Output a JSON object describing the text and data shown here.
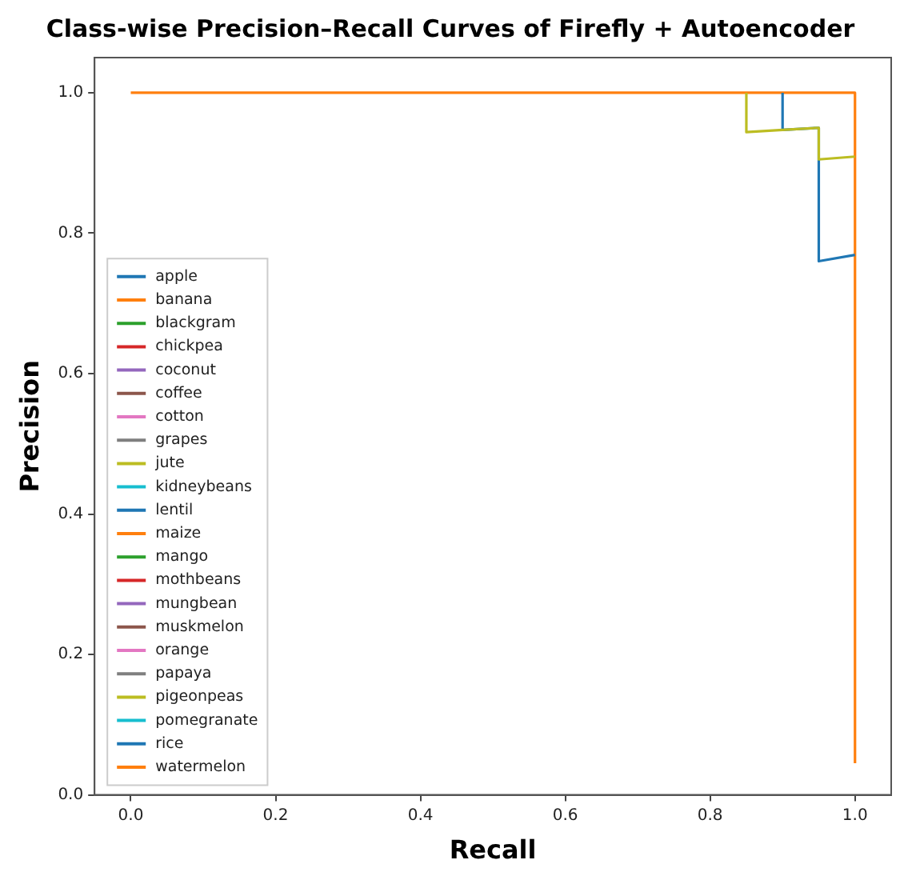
{
  "chart_data": {
    "type": "line",
    "title": "Class-wise Precision–Recall Curves of Firefly + Autoencoder",
    "xlabel": "Recall",
    "ylabel": "Precision",
    "xlim": [
      -0.05,
      1.05
    ],
    "ylim": [
      0,
      1.05
    ],
    "xticks": [
      {
        "value": 0,
        "label": "0.0"
      },
      0.2,
      0.4,
      0.6,
      0.8,
      {
        "value": 1,
        "label": "1.0"
      }
    ],
    "yticks": [
      {
        "value": 0,
        "label": "0.0"
      },
      0.2,
      0.4,
      0.6,
      0.8,
      {
        "value": 1,
        "label": "1.0"
      }
    ],
    "grid": false,
    "legend": "bottom left",
    "marker": "none",
    "line_style": "solid",
    "series": [
      {
        "name": "apple",
        "color": "#1f77b4"
      },
      {
        "name": "banana",
        "color": "#ff7f0e"
      },
      {
        "name": "blackgram",
        "color": "#2ca02c"
      },
      {
        "name": "chickpea",
        "color": "#d62728"
      },
      {
        "name": "coconut",
        "color": "#9467bd"
      },
      {
        "name": "coffee",
        "color": "#8c564b"
      },
      {
        "name": "cotton",
        "color": "#e377c2"
      },
      {
        "name": "grapes",
        "color": "#7f7f7f"
      },
      {
        "name": "jute",
        "color": "#bcbd22",
        "x": [
          1,
          0.95,
          0.95,
          0.9,
          0.85,
          0.85
        ],
        "values": [
          0.909,
          0.905,
          0.95,
          0.947,
          0.944,
          1
        ]
      },
      {
        "name": "kidneybeans",
        "color": "#17becf"
      },
      {
        "name": "lentil",
        "color": "#1f77b4"
      },
      {
        "name": "maize",
        "color": "#ff7f0e"
      },
      {
        "name": "mango",
        "color": "#2ca02c"
      },
      {
        "name": "mothbeans",
        "color": "#d62728"
      },
      {
        "name": "mungbean",
        "color": "#9467bd"
      },
      {
        "name": "muskmelon",
        "color": "#8c564b"
      },
      {
        "name": "orange",
        "color": "#e377c2"
      },
      {
        "name": "papaya",
        "color": "#7f7f7f"
      },
      {
        "name": "pigeonpeas",
        "color": "#bcbd22"
      },
      {
        "name": "pomegranate",
        "color": "#17becf"
      },
      {
        "name": "rice",
        "color": "#1f77b4",
        "x": [
          1,
          0.95,
          0.95,
          0.9,
          0.9
        ],
        "values": [
          0.769,
          0.76,
          0.95,
          0.947,
          1
        ]
      },
      {
        "name": "watermelon",
        "color": "#ff7f0e",
        "x": [
          1,
          1,
          0
        ],
        "values": [
          0.045,
          1,
          1
        ]
      }
    ]
  }
}
